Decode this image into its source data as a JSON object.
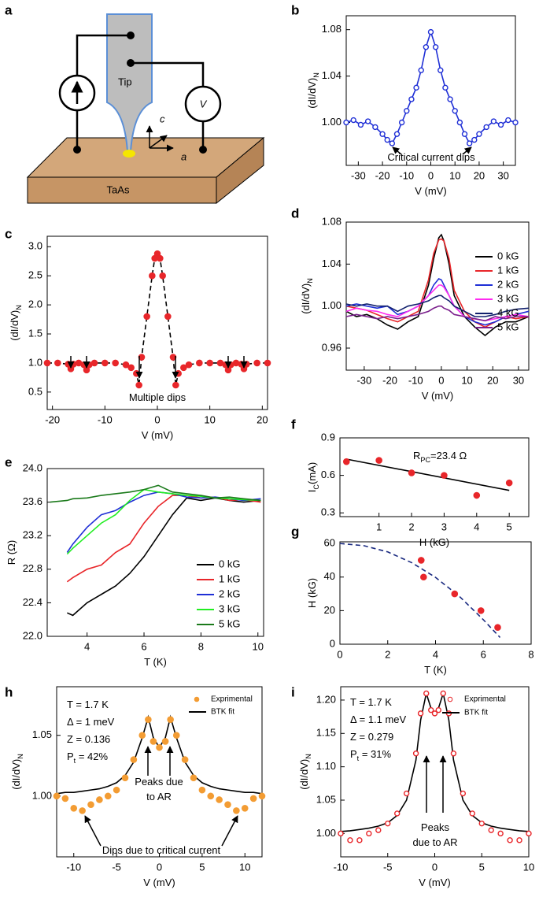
{
  "diagram": {
    "panel": "a",
    "tip": "Tip",
    "voltmeter": "V",
    "axis_c": "c",
    "axis_a": "a",
    "sample": "TaAs"
  },
  "chart_data": [
    {
      "type": "scatter",
      "panel": "b",
      "xlabel": [
        "V (mV)"
      ],
      "ylabel": [
        "(dI/dV)",
        "N"
      ],
      "xlim": [
        -35,
        35
      ],
      "xticks": [
        -30,
        -20,
        -10,
        0,
        10,
        20,
        30
      ],
      "ylim": [
        0.963,
        1.092
      ],
      "yticks": [
        {
          "value": 1,
          "label": "1.00"
        },
        1.04,
        1.08
      ],
      "x": [
        -35,
        -32,
        -29,
        -26,
        -23,
        -20,
        -18,
        -16,
        -14,
        -12,
        -10,
        -8,
        -6,
        -4,
        -2,
        0,
        2,
        4,
        6,
        8,
        10,
        12,
        14,
        16,
        18,
        20,
        23,
        26,
        29,
        32,
        35
      ],
      "series": [
        {
          "color": "#1f2fd6",
          "marker": "open-circle",
          "line": "solid",
          "values": [
            1.0,
            1.002,
            0.998,
            1.001,
            0.996,
            0.99,
            0.985,
            0.982,
            0.99,
            1.0,
            1.01,
            1.02,
            1.03,
            1.045,
            1.065,
            1.078,
            1.065,
            1.045,
            1.03,
            1.02,
            1.01,
            1.0,
            0.99,
            0.982,
            0.985,
            0.99,
            0.996,
            1.001,
            0.998,
            1.002,
            1.0
          ]
        }
      ],
      "annotations": [
        [
          "Critical current dips"
        ]
      ]
    },
    {
      "type": "scatter",
      "panel": "c",
      "xlabel": [
        "V (mV)"
      ],
      "ylabel": [
        "(dI/dV)",
        "N"
      ],
      "xlim": [
        -21,
        21
      ],
      "xticks": [
        -20,
        -10,
        0,
        10,
        20
      ],
      "ylim": [
        0.2,
        3.18
      ],
      "yticks": [
        0.5,
        {
          "value": 1,
          "label": "1.0"
        },
        1.5,
        {
          "value": 2,
          "label": "2.0"
        },
        2.5,
        {
          "value": 3,
          "label": "3.0"
        }
      ],
      "x": [
        -21,
        -19,
        -17,
        -16.5,
        -16,
        -15,
        -14,
        -13.5,
        -13,
        -12,
        -10,
        -8,
        -6,
        -5,
        -4,
        -3.5,
        -3,
        -2,
        -1,
        -0.5,
        0,
        0.5,
        1,
        2,
        3,
        3.5,
        4,
        5,
        6,
        8,
        10,
        12,
        13,
        13.5,
        14,
        15,
        16,
        16.5,
        17,
        19,
        21
      ],
      "series": [
        {
          "color": "#e8262a",
          "marker": "circle",
          "line": "dashed",
          "line_color": "#000000",
          "values": [
            1.0,
            1.0,
            0.98,
            0.9,
            0.98,
            1.0,
            0.97,
            0.88,
            0.97,
            1.0,
            1.0,
            1.0,
            0.97,
            0.92,
            0.82,
            0.62,
            1.1,
            1.8,
            2.5,
            2.8,
            2.88,
            2.8,
            2.5,
            1.8,
            1.1,
            0.62,
            0.82,
            0.92,
            0.97,
            1.0,
            1.0,
            1.0,
            0.97,
            0.88,
            0.97,
            1.0,
            0.98,
            0.9,
            0.98,
            1.0,
            1.0
          ]
        }
      ],
      "annotations": [
        [
          "Multiple dips"
        ]
      ]
    },
    {
      "type": "line",
      "panel": "d",
      "xlabel": [
        "V (mV)"
      ],
      "ylabel": [
        "(dI/dV)",
        "N"
      ],
      "xlim": [
        -37,
        34
      ],
      "xticks": [
        -30,
        -20,
        -10,
        0,
        10,
        20,
        30
      ],
      "ylim": [
        0.939,
        1.08
      ],
      "yticks": [
        0.96,
        {
          "value": 1,
          "label": "1.00"
        },
        1.04,
        1.08
      ],
      "x": [
        -37,
        -33,
        -29,
        -25,
        -21,
        -17,
        -13,
        -9,
        -5,
        -3,
        -1,
        0,
        1,
        3,
        5,
        9,
        13,
        17,
        21,
        25,
        29,
        34
      ],
      "series": [
        {
          "name": "0 kG",
          "color": "#000000",
          "line": "solid",
          "values": [
            0.995,
            0.99,
            0.992,
            0.988,
            0.982,
            0.978,
            0.985,
            0.99,
            1.02,
            1.045,
            1.065,
            1.068,
            1.062,
            1.04,
            1.01,
            0.99,
            0.98,
            0.972,
            0.98,
            0.985,
            0.985,
            0.99
          ]
        },
        {
          "name": "1 kG",
          "color": "#e8262a",
          "line": "solid",
          "values": [
            1.0,
            0.998,
            0.996,
            0.992,
            0.988,
            0.985,
            0.99,
            0.995,
            1.025,
            1.05,
            1.063,
            1.064,
            1.062,
            1.045,
            1.015,
            0.995,
            0.985,
            0.98,
            0.985,
            0.99,
            0.988,
            0.99
          ]
        },
        {
          "name": "2 kG",
          "color": "#1f2fd6",
          "line": "solid",
          "values": [
            1.0,
            1.002,
            1.0,
            0.998,
            1.0,
            0.992,
            0.995,
            1.0,
            1.01,
            1.02,
            1.026,
            1.025,
            1.02,
            1.01,
            1.0,
            0.99,
            0.985,
            0.982,
            0.985,
            0.99,
            0.992,
            0.995
          ]
        },
        {
          "name": "3 kG",
          "color": "#ff2bf0",
          "line": "solid",
          "values": [
            0.995,
            0.998,
            0.996,
            0.995,
            0.992,
            0.99,
            0.995,
            1.0,
            1.01,
            1.015,
            1.02,
            1.02,
            1.018,
            1.01,
            1.0,
            0.99,
            0.988,
            0.986,
            0.988,
            0.99,
            0.992,
            0.99
          ]
        },
        {
          "name": "4 kG",
          "color": "#13216e",
          "line": "solid",
          "values": [
            1.002,
            1.0,
            1.002,
            1.0,
            1.0,
            0.995,
            1.0,
            1.002,
            1.005,
            1.008,
            1.01,
            1.01,
            1.008,
            1.005,
            1.0,
            0.995,
            0.99,
            0.99,
            0.992,
            0.995,
            0.997,
            0.998
          ]
        },
        {
          "name": "5 kG",
          "color": "#7a1f8c",
          "line": "solid",
          "values": [
            0.99,
            0.992,
            0.99,
            0.988,
            0.99,
            0.988,
            0.99,
            0.992,
            0.995,
            0.998,
            1.0,
            1.0,
            0.998,
            0.996,
            0.992,
            0.99,
            0.988,
            0.986,
            0.99,
            0.988,
            0.99,
            0.99
          ]
        }
      ]
    },
    {
      "type": "line",
      "panel": "e",
      "xlabel": [
        "T (K)"
      ],
      "ylabel": [
        "R (Ω)"
      ],
      "xlim": [
        2.6,
        10.2
      ],
      "xticks": [
        4,
        6,
        8,
        10
      ],
      "ylim": [
        22,
        24
      ],
      "yticks": [
        {
          "value": 22,
          "label": "22.0"
        },
        22.4,
        22.8,
        23.2,
        23.6,
        {
          "value": 24,
          "label": "24.0"
        }
      ],
      "x": [
        2.7,
        3.3,
        3.5,
        4,
        4.5,
        5,
        5.5,
        6,
        6.5,
        7,
        7.5,
        8,
        8.5,
        9,
        9.5,
        10.1
      ],
      "series": [
        {
          "name": "0 kG",
          "color": "#000000",
          "line": "solid",
          "values": [
            null,
            22.28,
            22.25,
            22.4,
            22.5,
            22.6,
            22.75,
            22.95,
            23.2,
            23.45,
            23.65,
            23.62,
            23.65,
            23.62,
            23.6,
            23.62
          ]
        },
        {
          "name": "1 kG",
          "color": "#e8262a",
          "line": "solid",
          "values": [
            null,
            22.65,
            22.7,
            22.8,
            22.85,
            23.0,
            23.1,
            23.35,
            23.55,
            23.68,
            23.68,
            23.65,
            23.66,
            23.62,
            23.63,
            23.6
          ]
        },
        {
          "name": "2 kG",
          "color": "#1f2fd6",
          "line": "solid",
          "values": [
            null,
            23.0,
            23.1,
            23.3,
            23.45,
            23.5,
            23.6,
            23.68,
            23.72,
            23.7,
            23.66,
            23.65,
            23.66,
            23.64,
            23.62,
            23.64
          ]
        },
        {
          "name": "3 kG",
          "color": "#22ee22",
          "line": "solid",
          "values": [
            null,
            22.98,
            23.05,
            23.2,
            23.35,
            23.45,
            23.62,
            23.75,
            23.72,
            23.7,
            23.68,
            23.67,
            23.65,
            23.64,
            23.63,
            23.62
          ]
        },
        {
          "name": "5 kG",
          "color": "#1b7a1b",
          "line": "solid",
          "values": [
            23.6,
            23.62,
            23.64,
            23.65,
            23.68,
            23.7,
            23.72,
            23.75,
            23.8,
            23.72,
            23.7,
            23.68,
            23.65,
            23.66,
            23.64,
            23.62
          ]
        }
      ]
    },
    {
      "type": "scatter",
      "panel": "f",
      "xlabel": [
        "H (kG)"
      ],
      "ylabel": [
        "I",
        "C",
        "(mA)"
      ],
      "xlim": [
        -0.2,
        5.6
      ],
      "xticks": [
        1,
        2,
        3,
        4,
        5
      ],
      "ylim": [
        0.27,
        0.9
      ],
      "yticks": [
        0.3,
        0.6,
        0.9
      ],
      "series": [
        {
          "color": "#000000",
          "line": "solid",
          "x": [
            0,
            5
          ],
          "values": [
            0.73,
            0.48
          ]
        },
        {
          "color": "#e8262a",
          "marker": "circle",
          "x": [
            0,
            1,
            2,
            3,
            4,
            5
          ],
          "values": [
            0.71,
            0.72,
            0.62,
            0.6,
            0.44,
            0.54
          ]
        }
      ],
      "annotations": [
        [
          "R",
          "PC",
          "=23.4 Ω"
        ]
      ]
    },
    {
      "type": "scatter",
      "panel": "g",
      "xlabel": [
        "T (K)"
      ],
      "ylabel": [
        "H (kG)"
      ],
      "xlim": [
        0,
        8
      ],
      "xticks": [
        0,
        2,
        4,
        6,
        8
      ],
      "ylim": [
        0,
        61
      ],
      "yticks": [
        0,
        20,
        40,
        60
      ],
      "series": [
        {
          "color": "#1a2a80",
          "line": "dashed",
          "x": [
            0,
            1,
            2,
            3,
            4,
            5,
            6,
            6.7
          ],
          "values": [
            60,
            58.7,
            55,
            48.6,
            39.8,
            28.5,
            14.6,
            4
          ]
        },
        {
          "color": "#e8262a",
          "marker": "circle",
          "x": [
            3.4,
            3.5,
            4.8,
            5.9,
            6.6
          ],
          "values": [
            50,
            40,
            30,
            20,
            10
          ]
        }
      ]
    },
    {
      "type": "scatter",
      "panel": "h",
      "xlabel": [
        "V (mV)"
      ],
      "ylabel": [
        "(dI/dV)",
        "N"
      ],
      "xlim": [
        -12,
        12
      ],
      "xticks": [
        -10,
        -5,
        0,
        5,
        10
      ],
      "ylim": [
        0.95,
        1.09
      ],
      "yticks": [
        {
          "value": 1,
          "label": "1.00"
        },
        1.05
      ],
      "x": [
        -12,
        -11,
        -10,
        -9,
        -8,
        -7,
        -6,
        -5,
        -4,
        -3,
        -2,
        -1.3,
        -0.7,
        0,
        0.7,
        1.3,
        2,
        3,
        4,
        5,
        6,
        7,
        8,
        9,
        10,
        11,
        12
      ],
      "series": [
        {
          "name": "Exprimental",
          "color": "#f39c33",
          "marker": "circle",
          "values": [
            1.0,
            0.998,
            0.99,
            0.988,
            0.993,
            0.997,
            1.0,
            1.005,
            1.015,
            1.03,
            1.05,
            1.063,
            1.045,
            1.04,
            1.045,
            1.063,
            1.05,
            1.03,
            1.015,
            1.005,
            1.0,
            0.997,
            0.993,
            0.988,
            0.99,
            0.998,
            1.0
          ]
        },
        {
          "name": "BTK fit",
          "color": "#000000",
          "line": "solid",
          "values": [
            1.002,
            1.003,
            1.003,
            1.004,
            1.005,
            1.006,
            1.008,
            1.011,
            1.017,
            1.028,
            1.048,
            1.065,
            1.048,
            1.04,
            1.048,
            1.065,
            1.048,
            1.028,
            1.017,
            1.011,
            1.008,
            1.006,
            1.005,
            1.004,
            1.003,
            1.003,
            1.002
          ]
        }
      ],
      "annotations": [
        [
          "T = 1.7 K"
        ],
        [
          "Δ = 1 meV"
        ],
        [
          "Z = 0.136"
        ],
        [
          "P",
          "t",
          " = 42%"
        ],
        [
          "Peaks due"
        ],
        [
          "to AR"
        ],
        [
          "Dips due to critical current"
        ]
      ]
    },
    {
      "type": "scatter",
      "panel": "i",
      "xlabel": [
        "V (mV)"
      ],
      "ylabel": [
        "(dI/dV)",
        "N"
      ],
      "xlim": [
        -10,
        10
      ],
      "xticks": [
        -10,
        -5,
        0,
        5,
        10
      ],
      "ylim": [
        0.965,
        1.22
      ],
      "yticks": [
        {
          "value": 1,
          "label": "1.00"
        },
        1.05,
        {
          "value": 1.1,
          "label": "1.10"
        },
        1.15,
        {
          "value": 1.2,
          "label": "1.20"
        }
      ],
      "x": [
        -10,
        -9,
        -8,
        -7,
        -6,
        -5,
        -4,
        -3,
        -2,
        -1.5,
        -0.9,
        -0.4,
        0,
        0.4,
        0.9,
        1.5,
        2,
        3,
        4,
        5,
        6,
        7,
        8,
        9,
        10
      ],
      "series": [
        {
          "name": "Exprimental",
          "color": "#e8262a",
          "marker": "open-circle",
          "values": [
            1.0,
            0.99,
            0.99,
            1.0,
            1.005,
            1.015,
            1.03,
            1.06,
            1.12,
            1.18,
            1.21,
            1.185,
            1.18,
            1.185,
            1.21,
            1.18,
            1.12,
            1.06,
            1.03,
            1.015,
            1.005,
            1.0,
            0.99,
            0.99,
            1.0
          ]
        },
        {
          "name": "BTK fit",
          "color": "#000000",
          "line": "solid",
          "values": [
            1.003,
            1.004,
            1.006,
            1.008,
            1.011,
            1.016,
            1.027,
            1.05,
            1.11,
            1.17,
            1.21,
            1.188,
            1.18,
            1.188,
            1.21,
            1.17,
            1.11,
            1.05,
            1.027,
            1.016,
            1.011,
            1.008,
            1.006,
            1.004,
            1.003
          ]
        }
      ],
      "annotations": [
        [
          "T = 1.7 K"
        ],
        [
          "Δ = 1.1 meV"
        ],
        [
          "Z = 0.279"
        ],
        [
          "P",
          "t",
          " = 31%"
        ],
        [
          "Peaks"
        ],
        [
          "due to AR"
        ]
      ]
    }
  ]
}
